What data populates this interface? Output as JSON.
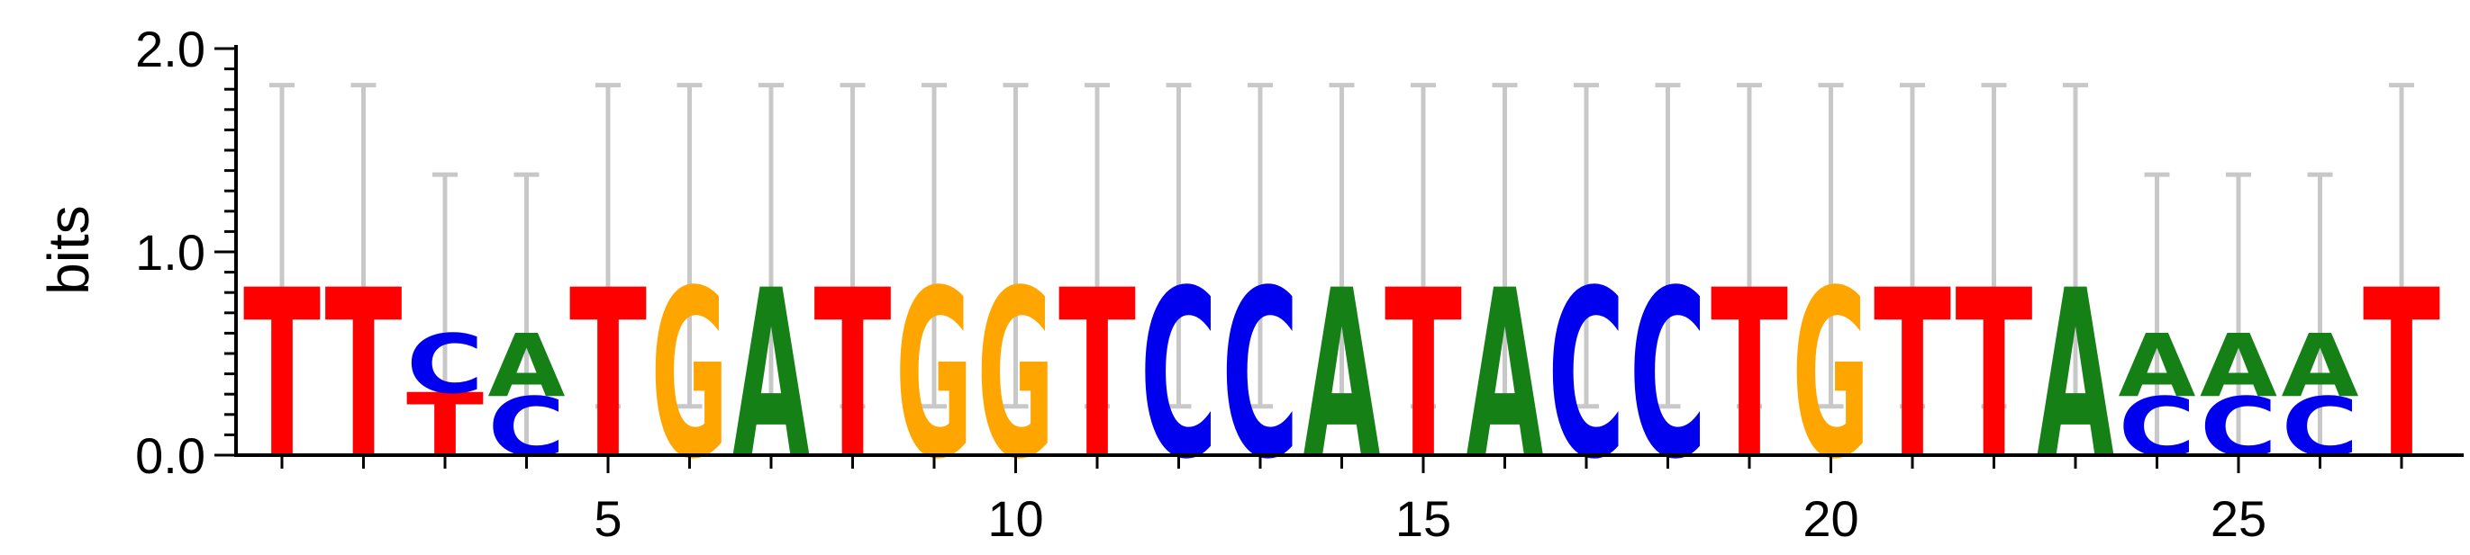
{
  "chart_data": {
    "type": "sequence-logo",
    "ylabel": "bits",
    "ylim": [
      0,
      2
    ],
    "y_ticks": [
      "0.0",
      "1.0",
      "2.0"
    ],
    "x_tick_labels": [
      "5",
      "10",
      "15",
      "20",
      "25"
    ],
    "x_tick_values": [
      5,
      10,
      15,
      20,
      25
    ],
    "letter_colors": {
      "A": "#158015",
      "C": "#0000ee",
      "G": "#ffa500",
      "T": "#ff0000"
    },
    "positions": [
      {
        "pos": 1,
        "letters": [
          {
            "letter": "T",
            "bits": 0.83
          }
        ],
        "error_upper": 1.82,
        "error_lower": 0.0
      },
      {
        "pos": 2,
        "letters": [
          {
            "letter": "T",
            "bits": 0.83
          }
        ],
        "error_upper": 1.82,
        "error_lower": 0.0
      },
      {
        "pos": 3,
        "letters": [
          {
            "letter": "T",
            "bits": 0.31
          },
          {
            "letter": "C",
            "bits": 0.29
          }
        ],
        "error_upper": 1.38,
        "error_lower": 0.0
      },
      {
        "pos": 4,
        "letters": [
          {
            "letter": "C",
            "bits": 0.29
          },
          {
            "letter": "A",
            "bits": 0.31
          }
        ],
        "error_upper": 1.38,
        "error_lower": 0.0
      },
      {
        "pos": 5,
        "letters": [
          {
            "letter": "T",
            "bits": 0.83
          }
        ],
        "error_upper": 1.82,
        "error_lower": 0.24
      },
      {
        "pos": 6,
        "letters": [
          {
            "letter": "G",
            "bits": 0.83
          }
        ],
        "error_upper": 1.82,
        "error_lower": 0.24
      },
      {
        "pos": 7,
        "letters": [
          {
            "letter": "A",
            "bits": 0.83
          }
        ],
        "error_upper": 1.82,
        "error_lower": 0.24
      },
      {
        "pos": 8,
        "letters": [
          {
            "letter": "T",
            "bits": 0.83
          }
        ],
        "error_upper": 1.82,
        "error_lower": 0.24
      },
      {
        "pos": 9,
        "letters": [
          {
            "letter": "G",
            "bits": 0.83
          }
        ],
        "error_upper": 1.82,
        "error_lower": 0.24
      },
      {
        "pos": 10,
        "letters": [
          {
            "letter": "G",
            "bits": 0.83
          }
        ],
        "error_upper": 1.82,
        "error_lower": 0.24
      },
      {
        "pos": 11,
        "letters": [
          {
            "letter": "T",
            "bits": 0.83
          }
        ],
        "error_upper": 1.82,
        "error_lower": 0.24
      },
      {
        "pos": 12,
        "letters": [
          {
            "letter": "C",
            "bits": 0.83
          }
        ],
        "error_upper": 1.82,
        "error_lower": 0.24
      },
      {
        "pos": 13,
        "letters": [
          {
            "letter": "C",
            "bits": 0.83
          }
        ],
        "error_upper": 1.82,
        "error_lower": 0.24
      },
      {
        "pos": 14,
        "letters": [
          {
            "letter": "A",
            "bits": 0.83
          }
        ],
        "error_upper": 1.82,
        "error_lower": 0.24
      },
      {
        "pos": 15,
        "letters": [
          {
            "letter": "T",
            "bits": 0.83
          }
        ],
        "error_upper": 1.82,
        "error_lower": 0.24
      },
      {
        "pos": 16,
        "letters": [
          {
            "letter": "A",
            "bits": 0.83
          }
        ],
        "error_upper": 1.82,
        "error_lower": 0.24
      },
      {
        "pos": 17,
        "letters": [
          {
            "letter": "C",
            "bits": 0.83
          }
        ],
        "error_upper": 1.82,
        "error_lower": 0.24
      },
      {
        "pos": 18,
        "letters": [
          {
            "letter": "C",
            "bits": 0.83
          }
        ],
        "error_upper": 1.82,
        "error_lower": 0.24
      },
      {
        "pos": 19,
        "letters": [
          {
            "letter": "T",
            "bits": 0.83
          }
        ],
        "error_upper": 1.82,
        "error_lower": 0.24
      },
      {
        "pos": 20,
        "letters": [
          {
            "letter": "G",
            "bits": 0.83
          }
        ],
        "error_upper": 1.82,
        "error_lower": 0.24
      },
      {
        "pos": 21,
        "letters": [
          {
            "letter": "T",
            "bits": 0.83
          }
        ],
        "error_upper": 1.82,
        "error_lower": 0.24
      },
      {
        "pos": 22,
        "letters": [
          {
            "letter": "T",
            "bits": 0.83
          }
        ],
        "error_upper": 1.82,
        "error_lower": 0.24
      },
      {
        "pos": 23,
        "letters": [
          {
            "letter": "A",
            "bits": 0.83
          }
        ],
        "error_upper": 1.82,
        "error_lower": 0.24
      },
      {
        "pos": 24,
        "letters": [
          {
            "letter": "C",
            "bits": 0.29
          },
          {
            "letter": "A",
            "bits": 0.31
          }
        ],
        "error_upper": 1.38,
        "error_lower": 0.0
      },
      {
        "pos": 25,
        "letters": [
          {
            "letter": "C",
            "bits": 0.29
          },
          {
            "letter": "A",
            "bits": 0.31
          }
        ],
        "error_upper": 1.38,
        "error_lower": 0.0
      },
      {
        "pos": 26,
        "letters": [
          {
            "letter": "C",
            "bits": 0.29
          },
          {
            "letter": "A",
            "bits": 0.31
          }
        ],
        "error_upper": 1.38,
        "error_lower": 0.0
      },
      {
        "pos": 27,
        "letters": [
          {
            "letter": "T",
            "bits": 0.83
          }
        ],
        "error_upper": 1.82,
        "error_lower": 0.0
      }
    ]
  }
}
